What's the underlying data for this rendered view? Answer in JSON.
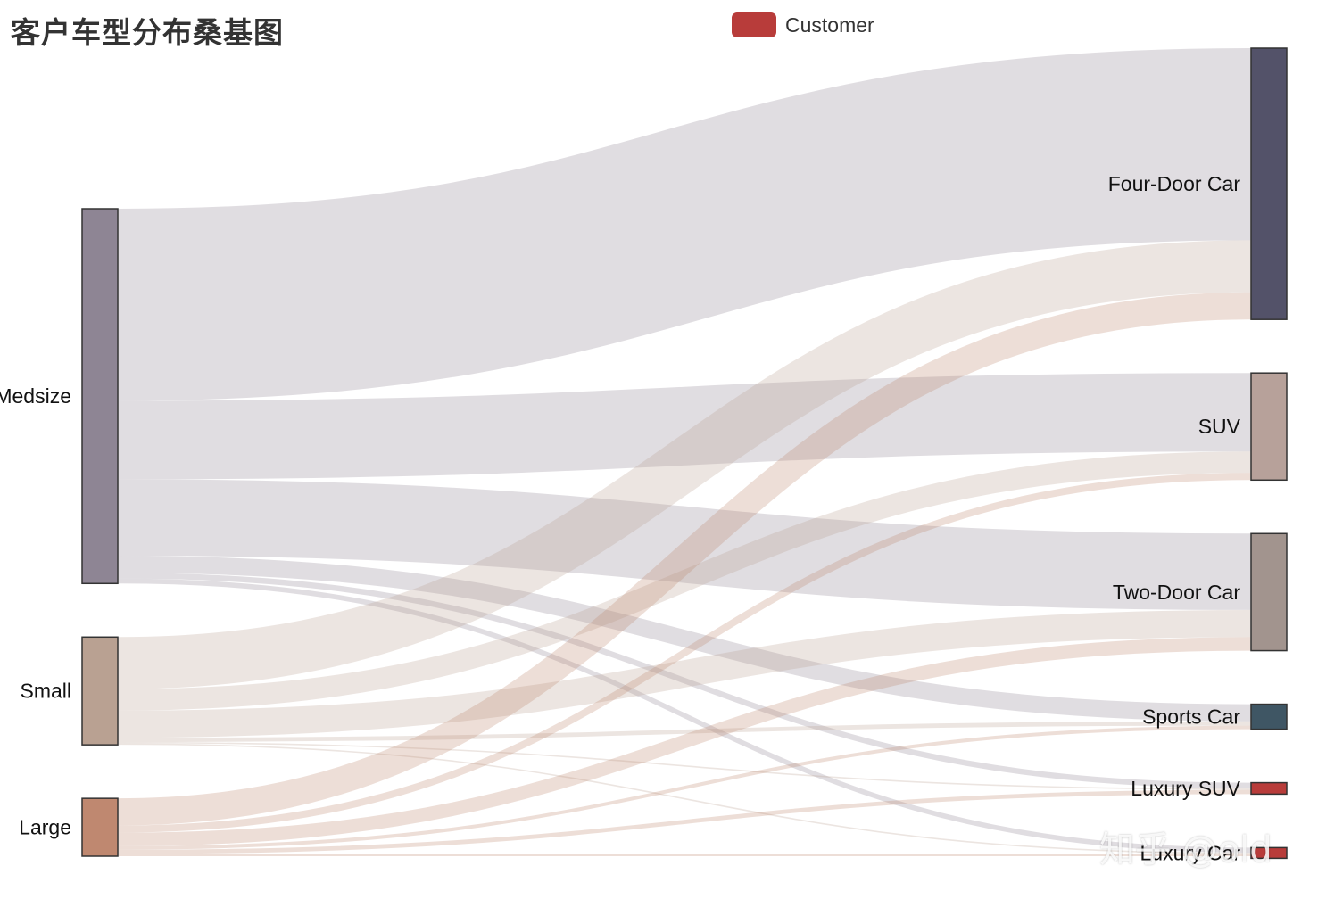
{
  "title": "客户车型分布桑基图",
  "legend": {
    "label": "Customer",
    "color": "#b83c3a"
  },
  "watermark": "知乎 @old",
  "chart_data": {
    "type": "sankey",
    "title": "客户车型分布桑基图",
    "series_name": "Customer",
    "nodes": [
      {
        "name": "Medsize",
        "color": "#8e8594"
      },
      {
        "name": "Small",
        "color": "#b9a192"
      },
      {
        "name": "Large",
        "color": "#bf8870"
      },
      {
        "name": "Four-Door Car",
        "color": "#535269"
      },
      {
        "name": "SUV",
        "color": "#b7a19a"
      },
      {
        "name": "Two-Door Car",
        "color": "#a2948e"
      },
      {
        "name": "Sports Car",
        "color": "#3f5664"
      },
      {
        "name": "Luxury SUV",
        "color": "#b83c3a"
      },
      {
        "name": "Luxury Car",
        "color": "#b83c3a"
      }
    ],
    "links": [
      {
        "source": "Medsize",
        "target": "Four-Door Car",
        "value": 2690
      },
      {
        "source": "Medsize",
        "target": "SUV",
        "value": 1100
      },
      {
        "source": "Medsize",
        "target": "Two-Door Car",
        "value": 1070
      },
      {
        "source": "Medsize",
        "target": "Sports Car",
        "value": 240
      },
      {
        "source": "Medsize",
        "target": "Luxury SUV",
        "value": 80
      },
      {
        "source": "Medsize",
        "target": "Luxury Car",
        "value": 70
      },
      {
        "source": "Small",
        "target": "Four-Door Car",
        "value": 730
      },
      {
        "source": "Small",
        "target": "SUV",
        "value": 300
      },
      {
        "source": "Small",
        "target": "Two-Door Car",
        "value": 380
      },
      {
        "source": "Small",
        "target": "Sports Car",
        "value": 60
      },
      {
        "source": "Small",
        "target": "Luxury SUV",
        "value": 20
      },
      {
        "source": "Small",
        "target": "Luxury Car",
        "value": 20
      },
      {
        "source": "Large",
        "target": "Four-Door Car",
        "value": 380
      },
      {
        "source": "Large",
        "target": "SUV",
        "value": 100
      },
      {
        "source": "Large",
        "target": "Two-Door Car",
        "value": 190
      },
      {
        "source": "Large",
        "target": "Sports Car",
        "value": 50
      },
      {
        "source": "Large",
        "target": "Luxury SUV",
        "value": 60
      },
      {
        "source": "Large",
        "target": "Luxury Car",
        "value": 30
      }
    ]
  }
}
